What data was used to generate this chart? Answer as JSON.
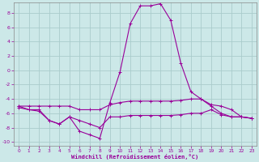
{
  "xlabel": "Windchill (Refroidissement éolien,°C)",
  "bg_color": "#cce8e8",
  "grid_color": "#aacccc",
  "line_color": "#990099",
  "xlim": [
    -0.5,
    23.5
  ],
  "ylim": [
    -10.5,
    9.5
  ],
  "yticks": [
    -10,
    -8,
    -6,
    -4,
    -2,
    0,
    2,
    4,
    6,
    8
  ],
  "xticks": [
    0,
    1,
    2,
    3,
    4,
    5,
    6,
    7,
    8,
    9,
    10,
    11,
    12,
    13,
    14,
    15,
    16,
    17,
    18,
    19,
    20,
    21,
    22,
    23
  ],
  "line1_x": [
    0,
    1,
    2,
    3,
    4,
    5,
    6,
    7,
    8,
    9,
    10,
    11,
    12,
    13,
    14,
    15,
    16,
    17,
    18,
    19,
    20,
    21,
    22,
    23
  ],
  "line1_y": [
    -5.0,
    -5.5,
    -5.5,
    -7.0,
    -7.5,
    -6.5,
    -8.5,
    -9.0,
    -9.5,
    -4.5,
    -0.2,
    6.5,
    9.0,
    9.0,
    9.3,
    7.0,
    1.0,
    -3.0,
    -4.0,
    -5.0,
    -6.0,
    -6.5,
    -6.5,
    -6.7
  ],
  "line2_x": [
    0,
    1,
    2,
    3,
    4,
    5,
    6,
    7,
    8,
    9,
    10,
    11,
    12,
    13,
    14,
    15,
    16,
    17,
    18,
    19,
    20,
    21,
    22,
    23
  ],
  "line2_y": [
    -5.0,
    -5.0,
    -5.0,
    -5.0,
    -5.0,
    -5.0,
    -5.5,
    -5.5,
    -5.5,
    -4.8,
    -4.5,
    -4.3,
    -4.3,
    -4.3,
    -4.3,
    -4.3,
    -4.2,
    -4.0,
    -4.0,
    -4.8,
    -5.0,
    -5.5,
    -6.5,
    -6.7
  ],
  "line3_x": [
    0,
    1,
    2,
    3,
    4,
    5,
    6,
    7,
    8,
    9,
    10,
    11,
    12,
    13,
    14,
    15,
    16,
    17,
    18,
    19,
    20,
    21,
    22,
    23
  ],
  "line3_y": [
    -5.2,
    -5.5,
    -5.7,
    -7.0,
    -7.5,
    -6.5,
    -7.0,
    -7.5,
    -8.0,
    -6.5,
    -6.5,
    -6.3,
    -6.3,
    -6.3,
    -6.3,
    -6.3,
    -6.2,
    -6.0,
    -6.0,
    -5.5,
    -6.2,
    -6.5,
    -6.5,
    -6.7
  ]
}
